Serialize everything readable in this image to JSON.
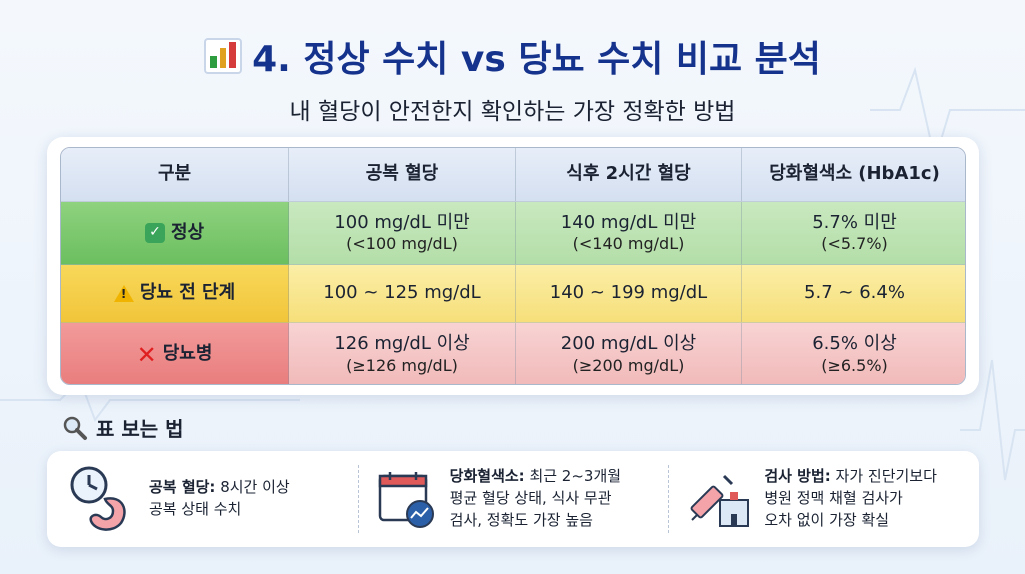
{
  "title": {
    "text": "4. 정상 수치 vs 당뇨 수치 비교 분석",
    "icon": "bar-chart-icon",
    "colors": [
      "#2e9d3f",
      "#e0a020",
      "#d63b3b"
    ]
  },
  "subtitle": "내 혈당이 안전한지 확인하는 가장 정확한 방법",
  "table": {
    "headers": [
      "구분",
      "공복 혈당",
      "식후 2시간 혈당",
      "당화혈색소 (HbA1c)"
    ],
    "rows": [
      {
        "label": "정상",
        "icon": "check-icon",
        "cells": [
          {
            "main": "100 mg/dL 미만",
            "sub": "(<100 mg/dL)"
          },
          {
            "main": "140 mg/dL 미만",
            "sub": "(<140 mg/dL)"
          },
          {
            "main": "5.7% 미만",
            "sub": "(<5.7%)"
          }
        ]
      },
      {
        "label": "당뇨 전 단계",
        "icon": "warning-icon",
        "cells": [
          {
            "main": "100 ~ 125 mg/dL"
          },
          {
            "main": "140 ~ 199 mg/dL"
          },
          {
            "main": "5.7 ~ 6.4%"
          }
        ]
      },
      {
        "label": "당뇨병",
        "icon": "x-icon",
        "cells": [
          {
            "main": "126 mg/dL 이상",
            "sub": "(≥126 mg/dL)"
          },
          {
            "main": "200 mg/dL 이상",
            "sub": "(≥200 mg/dL)"
          },
          {
            "main": "6.5% 이상",
            "sub": "(≥6.5%)"
          }
        ]
      }
    ],
    "colors": {
      "normal": "#6bbf5f",
      "pre": "#f1c53a",
      "diabetes": "#e97d7d"
    }
  },
  "howto": {
    "title": "표 보는 법",
    "icon": "magnifier-icon",
    "items": [
      {
        "icon": "clock-stomach-icon",
        "bold": "공복 혈당:",
        "lines": [
          " 8시간 이상",
          "공복 상태 수치"
        ]
      },
      {
        "icon": "calendar-chart-icon",
        "bold": "당화혈색소:",
        "lines": [
          " 최근 2~3개월",
          "평균 혈당 상태, 식사 무관",
          "검사, 정확도 가장 높음"
        ]
      },
      {
        "icon": "syringe-hospital-icon",
        "bold": "검사 방법:",
        "lines": [
          " 자가 진단기보다",
          "병원 정맥 채혈 검사가",
          "오차 없이 가장 확실"
        ]
      }
    ]
  }
}
